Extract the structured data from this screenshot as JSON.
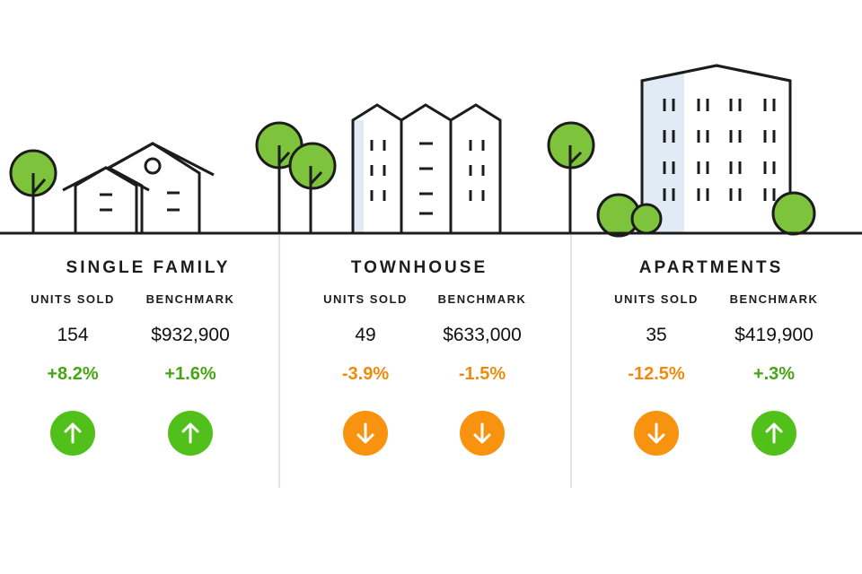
{
  "colors": {
    "up": "#52c01b",
    "down": "#f8930f",
    "up_text": "#47a514",
    "down_text": "#f08a0c",
    "tree": "#7dc43c",
    "building_shade": "#e0ebf5",
    "outline": "#1c1c1c"
  },
  "segments": [
    {
      "title": "SINGLE FAMILY",
      "metrics": [
        {
          "label": "UNITS SOLD",
          "value": "154",
          "change": "+8.2%",
          "direction": "up",
          "icon": "arrow-up-icon"
        },
        {
          "label": "BENCHMARK",
          "value": "$932,900",
          "change": "+1.6%",
          "direction": "up",
          "icon": "arrow-up-icon"
        }
      ]
    },
    {
      "title": "TOWNHOUSE",
      "metrics": [
        {
          "label": "UNITS SOLD",
          "value": "49",
          "change": "-3.9%",
          "direction": "down",
          "icon": "arrow-down-icon"
        },
        {
          "label": "BENCHMARK",
          "value": "$633,000",
          "change": "-1.5%",
          "direction": "down",
          "icon": "arrow-down-icon"
        }
      ]
    },
    {
      "title": "APARTMENTS",
      "metrics": [
        {
          "label": "UNITS SOLD",
          "value": "35",
          "change": "-12.5%",
          "direction": "down",
          "icon": "arrow-down-icon"
        },
        {
          "label": "BENCHMARK",
          "value": "$419,900",
          "change": "+.3%",
          "direction": "up",
          "icon": "arrow-up-icon"
        }
      ]
    }
  ]
}
